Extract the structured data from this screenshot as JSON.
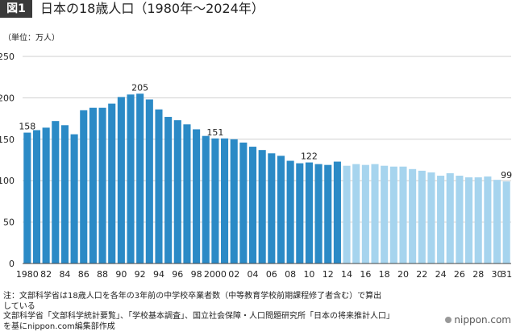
{
  "figure_label": "図1",
  "title": "日本の18歳人口（1980年～2024年）",
  "unit_label": "（単位：万人）",
  "notes": [
    "注：文部科学省は18歳人口を各年の3年前の中学校卒業者数（中等教育学校前期課程修了者含む）で算出",
    "している",
    "文部科学省「文部科学統計要覧」、「学校基本調査」、国立社会保障・人口問題研究所「日本の将来推計人口」",
    "を基にnippon.com編集部作成"
  ],
  "logo_text": "nippon.com",
  "colors": {
    "actual": "#2b8ac6",
    "projected": "#a6d4ee",
    "grid": "#cfcfcf",
    "axis": "#444444"
  },
  "chart_data": {
    "type": "bar",
    "categories": [
      "1980",
      "1981",
      "1982",
      "1983",
      "1984",
      "1985",
      "1986",
      "1987",
      "1988",
      "1989",
      "1990",
      "1991",
      "1992",
      "1993",
      "1994",
      "1995",
      "1996",
      "1997",
      "1998",
      "1999",
      "2000",
      "2001",
      "2002",
      "2003",
      "2004",
      "2005",
      "2006",
      "2007",
      "2008",
      "2009",
      "2010",
      "2011",
      "2012",
      "2013",
      "2014",
      "2015",
      "2016",
      "2017",
      "2018",
      "2019",
      "2020",
      "2021",
      "2022",
      "2023",
      "2024",
      "2025",
      "2026",
      "2027",
      "2028",
      "2029",
      "2030",
      "2031"
    ],
    "tick_labels": [
      "1980",
      "82",
      "84",
      "86",
      "88",
      "90",
      "92",
      "94",
      "96",
      "98",
      "2000",
      "02",
      "04",
      "06",
      "08",
      "10",
      "12",
      "14",
      "16",
      "18",
      "20",
      "22",
      "24",
      "26",
      "28",
      "30",
      "31"
    ],
    "values": [
      158,
      161,
      164,
      172,
      167,
      156,
      185,
      188,
      188,
      193,
      201,
      204,
      205,
      198,
      186,
      177,
      173,
      168,
      162,
      154,
      151,
      151,
      150,
      146,
      141,
      137,
      133,
      130,
      124,
      121,
      122,
      120,
      119,
      123,
      118,
      120,
      119,
      120,
      118,
      117,
      117,
      114,
      112,
      110,
      106,
      109,
      106,
      104,
      104,
      105,
      101,
      99
    ],
    "actual_last_index": 33,
    "data_labels": [
      {
        "index": 0,
        "text": "158"
      },
      {
        "index": 12,
        "text": "205"
      },
      {
        "index": 20,
        "text": "151"
      },
      {
        "index": 30,
        "text": "122"
      },
      {
        "index": 51,
        "text": "99"
      }
    ],
    "ylim": [
      0,
      250
    ],
    "yticks": [
      0,
      50,
      100,
      150,
      200,
      250
    ],
    "grid": true
  }
}
